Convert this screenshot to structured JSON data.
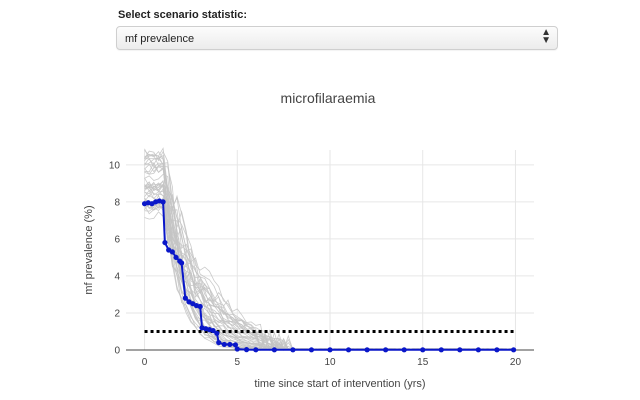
{
  "control": {
    "label": "Select scenario statistic:",
    "selected_value": "mf prevalence"
  },
  "chart_data": {
    "type": "line",
    "title": "microfilaraemia",
    "xlabel": "time since start of intervention (yrs)",
    "ylabel": "mf prevalence (%)",
    "xlim": [
      -1,
      21
    ],
    "ylim": [
      0,
      10.8
    ],
    "xticks": [
      0,
      5,
      10,
      15,
      20
    ],
    "yticks": [
      0,
      2,
      4,
      6,
      8,
      10
    ],
    "grid": true,
    "legend": "none",
    "colors": {
      "mean": "#0a17c9",
      "simulations": "#c4c4c4",
      "threshold": "#000000"
    },
    "threshold": {
      "y": 1,
      "x_range": [
        0,
        20
      ]
    },
    "mean_series": {
      "x": [
        0,
        0.2,
        0.4,
        0.6,
        0.8,
        1.0,
        1.1,
        1.3,
        1.5,
        1.7,
        1.9,
        2.0,
        2.2,
        2.4,
        2.6,
        2.8,
        3.0,
        3.1,
        3.3,
        3.5,
        3.7,
        3.9,
        4.0,
        4.3,
        4.6,
        4.9,
        5.0,
        5.5,
        6,
        7,
        8,
        9,
        10,
        11,
        12,
        13,
        14,
        15,
        16,
        17,
        18,
        19,
        19.9
      ],
      "y": [
        7.9,
        7.95,
        7.9,
        8.0,
        8.05,
        8.0,
        5.8,
        5.4,
        5.3,
        5.0,
        4.8,
        4.7,
        2.8,
        2.6,
        2.5,
        2.4,
        2.35,
        1.2,
        1.15,
        1.1,
        1.05,
        0.9,
        0.4,
        0.3,
        0.3,
        0.28,
        0.05,
        0.02,
        0.01,
        0.01,
        0.01,
        0.01,
        0.01,
        0.01,
        0.01,
        0.01,
        0.01,
        0.01,
        0.01,
        0.01,
        0.01,
        0.01,
        0.01
      ]
    },
    "simulation_count": 40
  }
}
